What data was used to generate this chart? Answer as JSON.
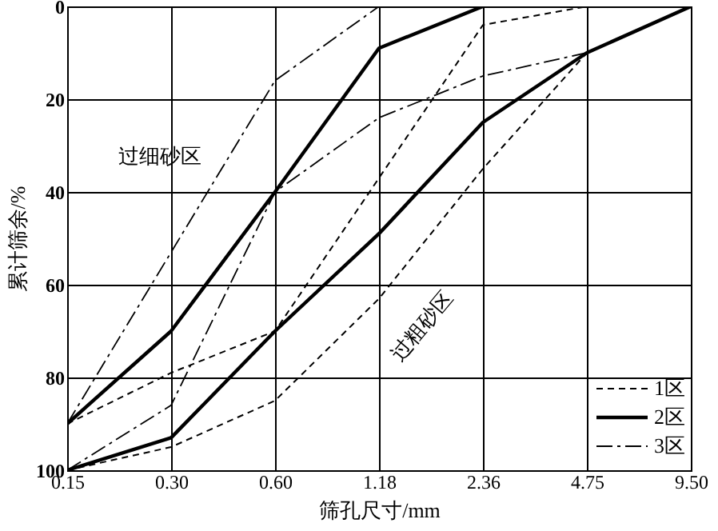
{
  "chart_data": {
    "type": "line",
    "xlabel": "筛孔尺寸/mm",
    "ylabel": "累计筛余/%",
    "categories": [
      "0.15",
      "0.30",
      "0.60",
      "1.18",
      "2.36",
      "4.75",
      "9.50"
    ],
    "series": [
      {
        "name": "1区",
        "color": "#000000",
        "line_style": "dashed",
        "values": [
          100,
          95,
          85,
          63,
          35,
          10,
          0
        ]
      },
      {
        "color": "#000000",
        "line_style": "dashed",
        "values": [
          90,
          79,
          70,
          37,
          4,
          0,
          null
        ]
      },
      {
        "name": "2区",
        "color": "#000000",
        "line_style": "solid",
        "values": [
          100,
          93,
          70,
          49,
          25,
          10,
          0
        ]
      },
      {
        "color": "#000000",
        "line_style": "solid",
        "values": [
          90,
          70,
          40,
          9,
          0,
          null,
          null
        ]
      },
      {
        "name": "3区",
        "color": "#000000",
        "line_style": "dashdot",
        "values": [
          100,
          86,
          40,
          24,
          15,
          10,
          0
        ]
      },
      {
        "color": "#000000",
        "line_style": "dashdot",
        "values": [
          90,
          53,
          16,
          0,
          null,
          null,
          null
        ]
      }
    ],
    "ylim": [
      100,
      0
    ],
    "yticks": [
      0,
      20,
      40,
      60,
      80,
      100
    ],
    "grid": true,
    "legend": "bottom right",
    "annotations": [
      "过细砂区",
      "过粗砂区"
    ]
  }
}
